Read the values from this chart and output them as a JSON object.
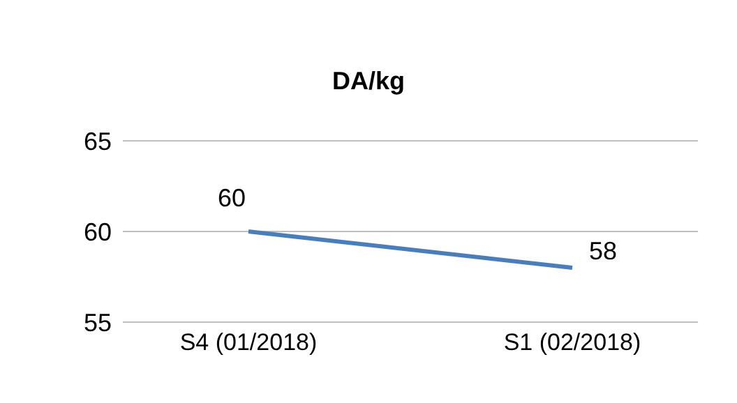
{
  "chart_data": {
    "type": "line",
    "title": "DA/kg",
    "categories": [
      "S4 (01/2018)",
      "S1 (02/2018)"
    ],
    "series": [
      {
        "color": "#4a7ebb",
        "values": [
          60,
          58
        ]
      }
    ],
    "ylim": [
      55,
      65
    ],
    "yticks": [
      55,
      60,
      65
    ],
    "grid": "y",
    "marker": "none",
    "line_style": "solid",
    "data_labels": true
  }
}
